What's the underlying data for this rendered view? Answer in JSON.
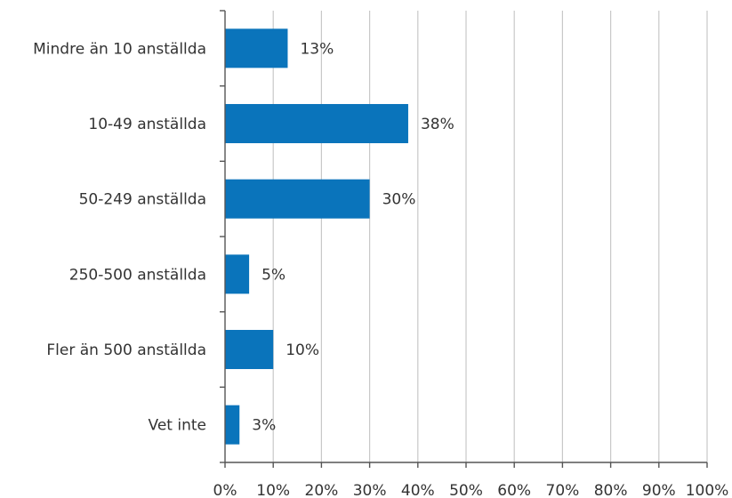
{
  "chart_data": {
    "type": "bar",
    "orientation": "horizontal",
    "categories": [
      "Mindre än 10 anställda",
      "10-49 anställda",
      "50-249 anställda",
      "250-500 anställda",
      "Fler än 500 anställda",
      "Vet inte"
    ],
    "values": [
      13,
      38,
      30,
      5,
      10,
      3
    ],
    "data_labels": [
      "13%",
      "38%",
      "30%",
      "5%",
      "10%",
      "3%"
    ],
    "xlim": [
      0,
      100
    ],
    "x_ticks": [
      "0%",
      "10%",
      "20%",
      "30%",
      "40%",
      "50%",
      "60%",
      "70%",
      "80%",
      "90%",
      "100%"
    ],
    "grid": "vertical",
    "bar_color": "#0a74bb"
  }
}
